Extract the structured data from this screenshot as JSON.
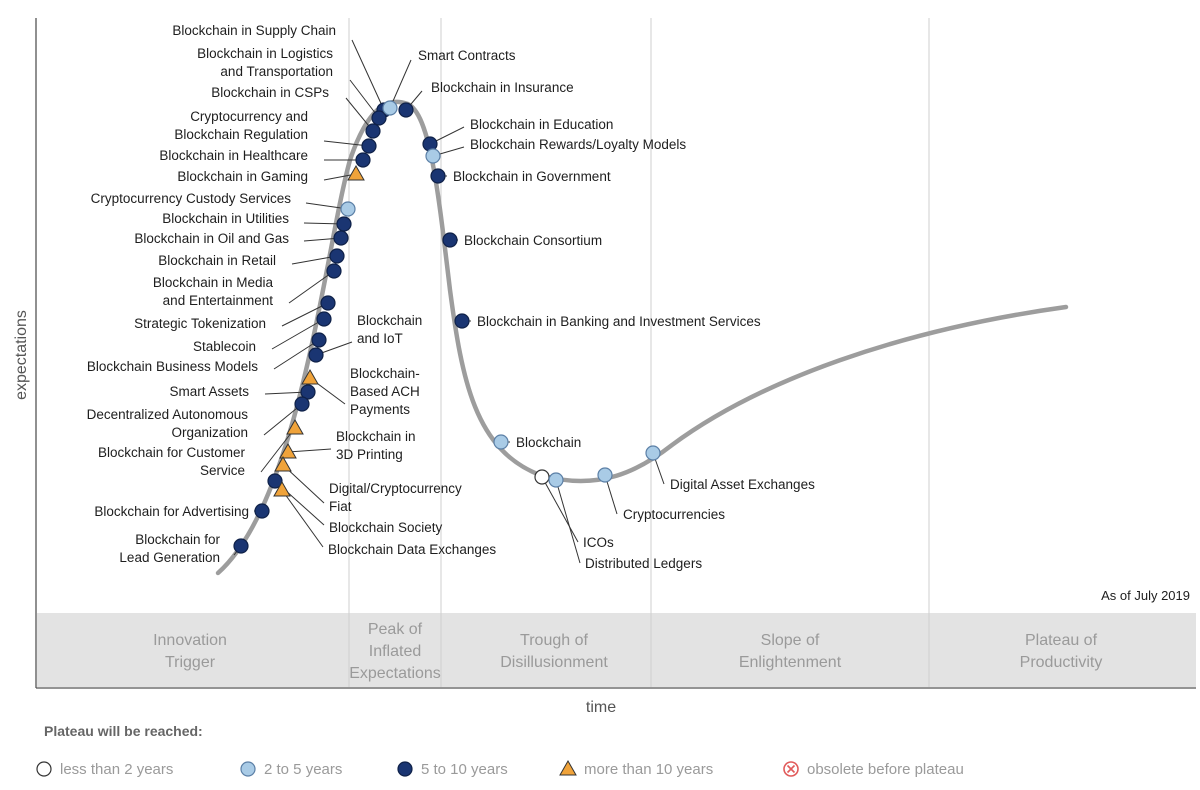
{
  "axes": {
    "y_label": "expectations",
    "x_label": "time"
  },
  "as_of": "As of July 2019",
  "phases": [
    [
      "Innovation",
      "Trigger"
    ],
    [
      "Peak of",
      "Inflated",
      "Expectations"
    ],
    [
      "Trough of",
      "Disillusionment"
    ],
    [
      "Slope of",
      "Enlightenment"
    ],
    [
      "Plateau of",
      "Productivity"
    ]
  ],
  "legend": {
    "title": "Plateau will be reached:",
    "items": [
      {
        "key": "lt2",
        "label": "less than 2 years",
        "shape": "circle",
        "color": "#ffffff"
      },
      {
        "key": "2to5",
        "label": "2 to 5 years",
        "shape": "circle",
        "color": "#a9cbe6"
      },
      {
        "key": "5to10",
        "label": "5 to 10 years",
        "shape": "circle",
        "color": "#1a3572"
      },
      {
        "key": "gt10",
        "label": "more than 10 years",
        "shape": "triangle",
        "color": "#f0a33a"
      },
      {
        "key": "obsolete",
        "label": "obsolete before plateau",
        "shape": "cross",
        "color": "#e15a5a"
      }
    ]
  },
  "technologies": [
    {
      "name": [
        "Blockchain in Supply Chain"
      ],
      "category": "5to10"
    },
    {
      "name": [
        "Blockchain in Logistics",
        "and Transportation"
      ],
      "category": "5to10"
    },
    {
      "name": [
        "Blockchain in CSPs"
      ],
      "category": "5to10"
    },
    {
      "name": [
        "Cryptocurrency and",
        "Blockchain Regulation"
      ],
      "category": "5to10"
    },
    {
      "name": [
        "Blockchain in Healthcare"
      ],
      "category": "5to10"
    },
    {
      "name": [
        "Blockchain in Gaming"
      ],
      "category": "gt10"
    },
    {
      "name": [
        "Cryptocurrency Custody Services"
      ],
      "category": "2to5"
    },
    {
      "name": [
        "Blockchain in Utilities"
      ],
      "category": "5to10"
    },
    {
      "name": [
        "Blockchain in Oil and Gas"
      ],
      "category": "5to10"
    },
    {
      "name": [
        "Blockchain in Retail"
      ],
      "category": "5to10"
    },
    {
      "name": [
        "Blockchain in Media",
        "and Entertainment"
      ],
      "category": "5to10"
    },
    {
      "name": [
        "Strategic Tokenization"
      ],
      "category": "5to10"
    },
    {
      "name": [
        "Stablecoin"
      ],
      "category": "5to10"
    },
    {
      "name": [
        "Blockchain Business Models"
      ],
      "category": "5to10"
    },
    {
      "name": [
        "Smart Assets"
      ],
      "category": "5to10"
    },
    {
      "name": [
        "Decentralized Autonomous",
        "Organization"
      ],
      "category": "5to10"
    },
    {
      "name": [
        "Blockchain for Customer",
        "Service"
      ],
      "category": "gt10"
    },
    {
      "name": [
        "Blockchain for Advertising"
      ],
      "category": "5to10"
    },
    {
      "name": [
        "Blockchain for",
        "Lead Generation"
      ],
      "category": "5to10"
    },
    {
      "name": [
        "Blockchain",
        "and IoT"
      ],
      "category": "5to10"
    },
    {
      "name": [
        "Blockchain-",
        "Based ACH",
        "Payments"
      ],
      "category": "gt10"
    },
    {
      "name": [
        "Blockchain in",
        "3D Printing"
      ],
      "category": "gt10"
    },
    {
      "name": [
        "Digital/Cryptocurrency",
        "Fiat"
      ],
      "category": "gt10"
    },
    {
      "name": [
        "Blockchain Society"
      ],
      "category": "5to10"
    },
    {
      "name": [
        "Blockchain Data Exchanges"
      ],
      "category": "gt10"
    },
    {
      "name": [
        "Smart Contracts"
      ],
      "category": "2to5"
    },
    {
      "name": [
        "Blockchain in Insurance"
      ],
      "category": "5to10"
    },
    {
      "name": [
        "Blockchain in Education"
      ],
      "category": "5to10"
    },
    {
      "name": [
        "Blockchain Rewards/Loyalty Models"
      ],
      "category": "2to5"
    },
    {
      "name": [
        "Blockchain in Government"
      ],
      "category": "5to10"
    },
    {
      "name": [
        "Blockchain Consortium"
      ],
      "category": "5to10"
    },
    {
      "name": [
        "Blockchain in Banking and Investment Services"
      ],
      "category": "5to10"
    },
    {
      "name": [
        "Blockchain"
      ],
      "category": "2to5"
    },
    {
      "name": [
        "ICOs"
      ],
      "category": "lt2"
    },
    {
      "name": [
        "Distributed Ledgers"
      ],
      "category": "2to5"
    },
    {
      "name": [
        "Cryptocurrencies"
      ],
      "category": "2to5"
    },
    {
      "name": [
        "Digital Asset Exchanges"
      ],
      "category": "2to5"
    }
  ]
}
